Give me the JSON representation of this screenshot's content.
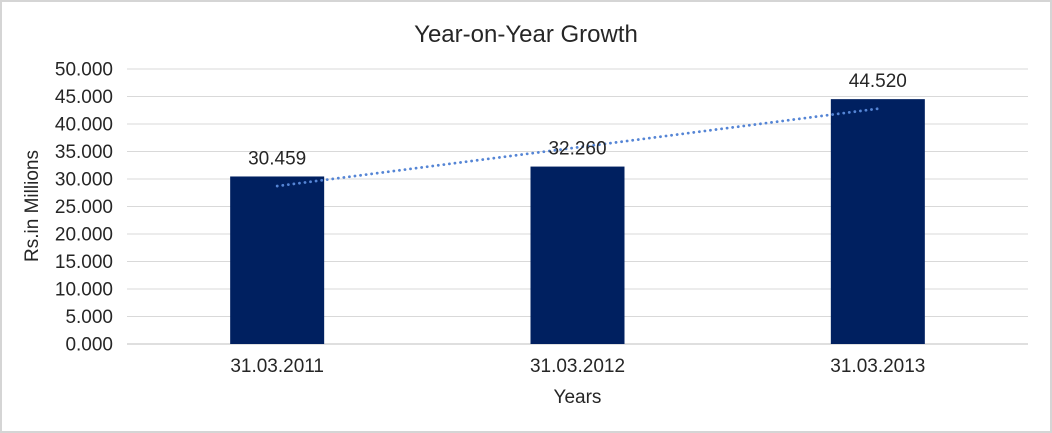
{
  "chart_data": {
    "type": "bar",
    "title": "Year-on-Year Growth",
    "categories": [
      "31.03.2011",
      "31.03.2012",
      "31.03.2013"
    ],
    "values": [
      30.459,
      32.26,
      44.52
    ],
    "data_labels": [
      "30.459",
      "32.260",
      "44.520"
    ],
    "xlabel": "Years",
    "ylabel": "Rs.in Millions",
    "ylim": [
      0,
      50
    ],
    "ytick_labels": [
      "0.000",
      "5.000",
      "10.000",
      "15.000",
      "20.000",
      "25.000",
      "30.000",
      "35.000",
      "40.000",
      "45.000",
      "50.000"
    ],
    "grid": true,
    "legend": "none",
    "bar_color": "#002060",
    "trendline": {
      "type": "linear",
      "style": "dotted",
      "color": "#5585D5"
    },
    "colors": {
      "gridline": "#D9D9D9",
      "axis_line": "#BFBFBF",
      "text": "#262626",
      "title": "#262626",
      "chart_border": "#D5D5D5",
      "background": "#FFFFFF"
    }
  }
}
